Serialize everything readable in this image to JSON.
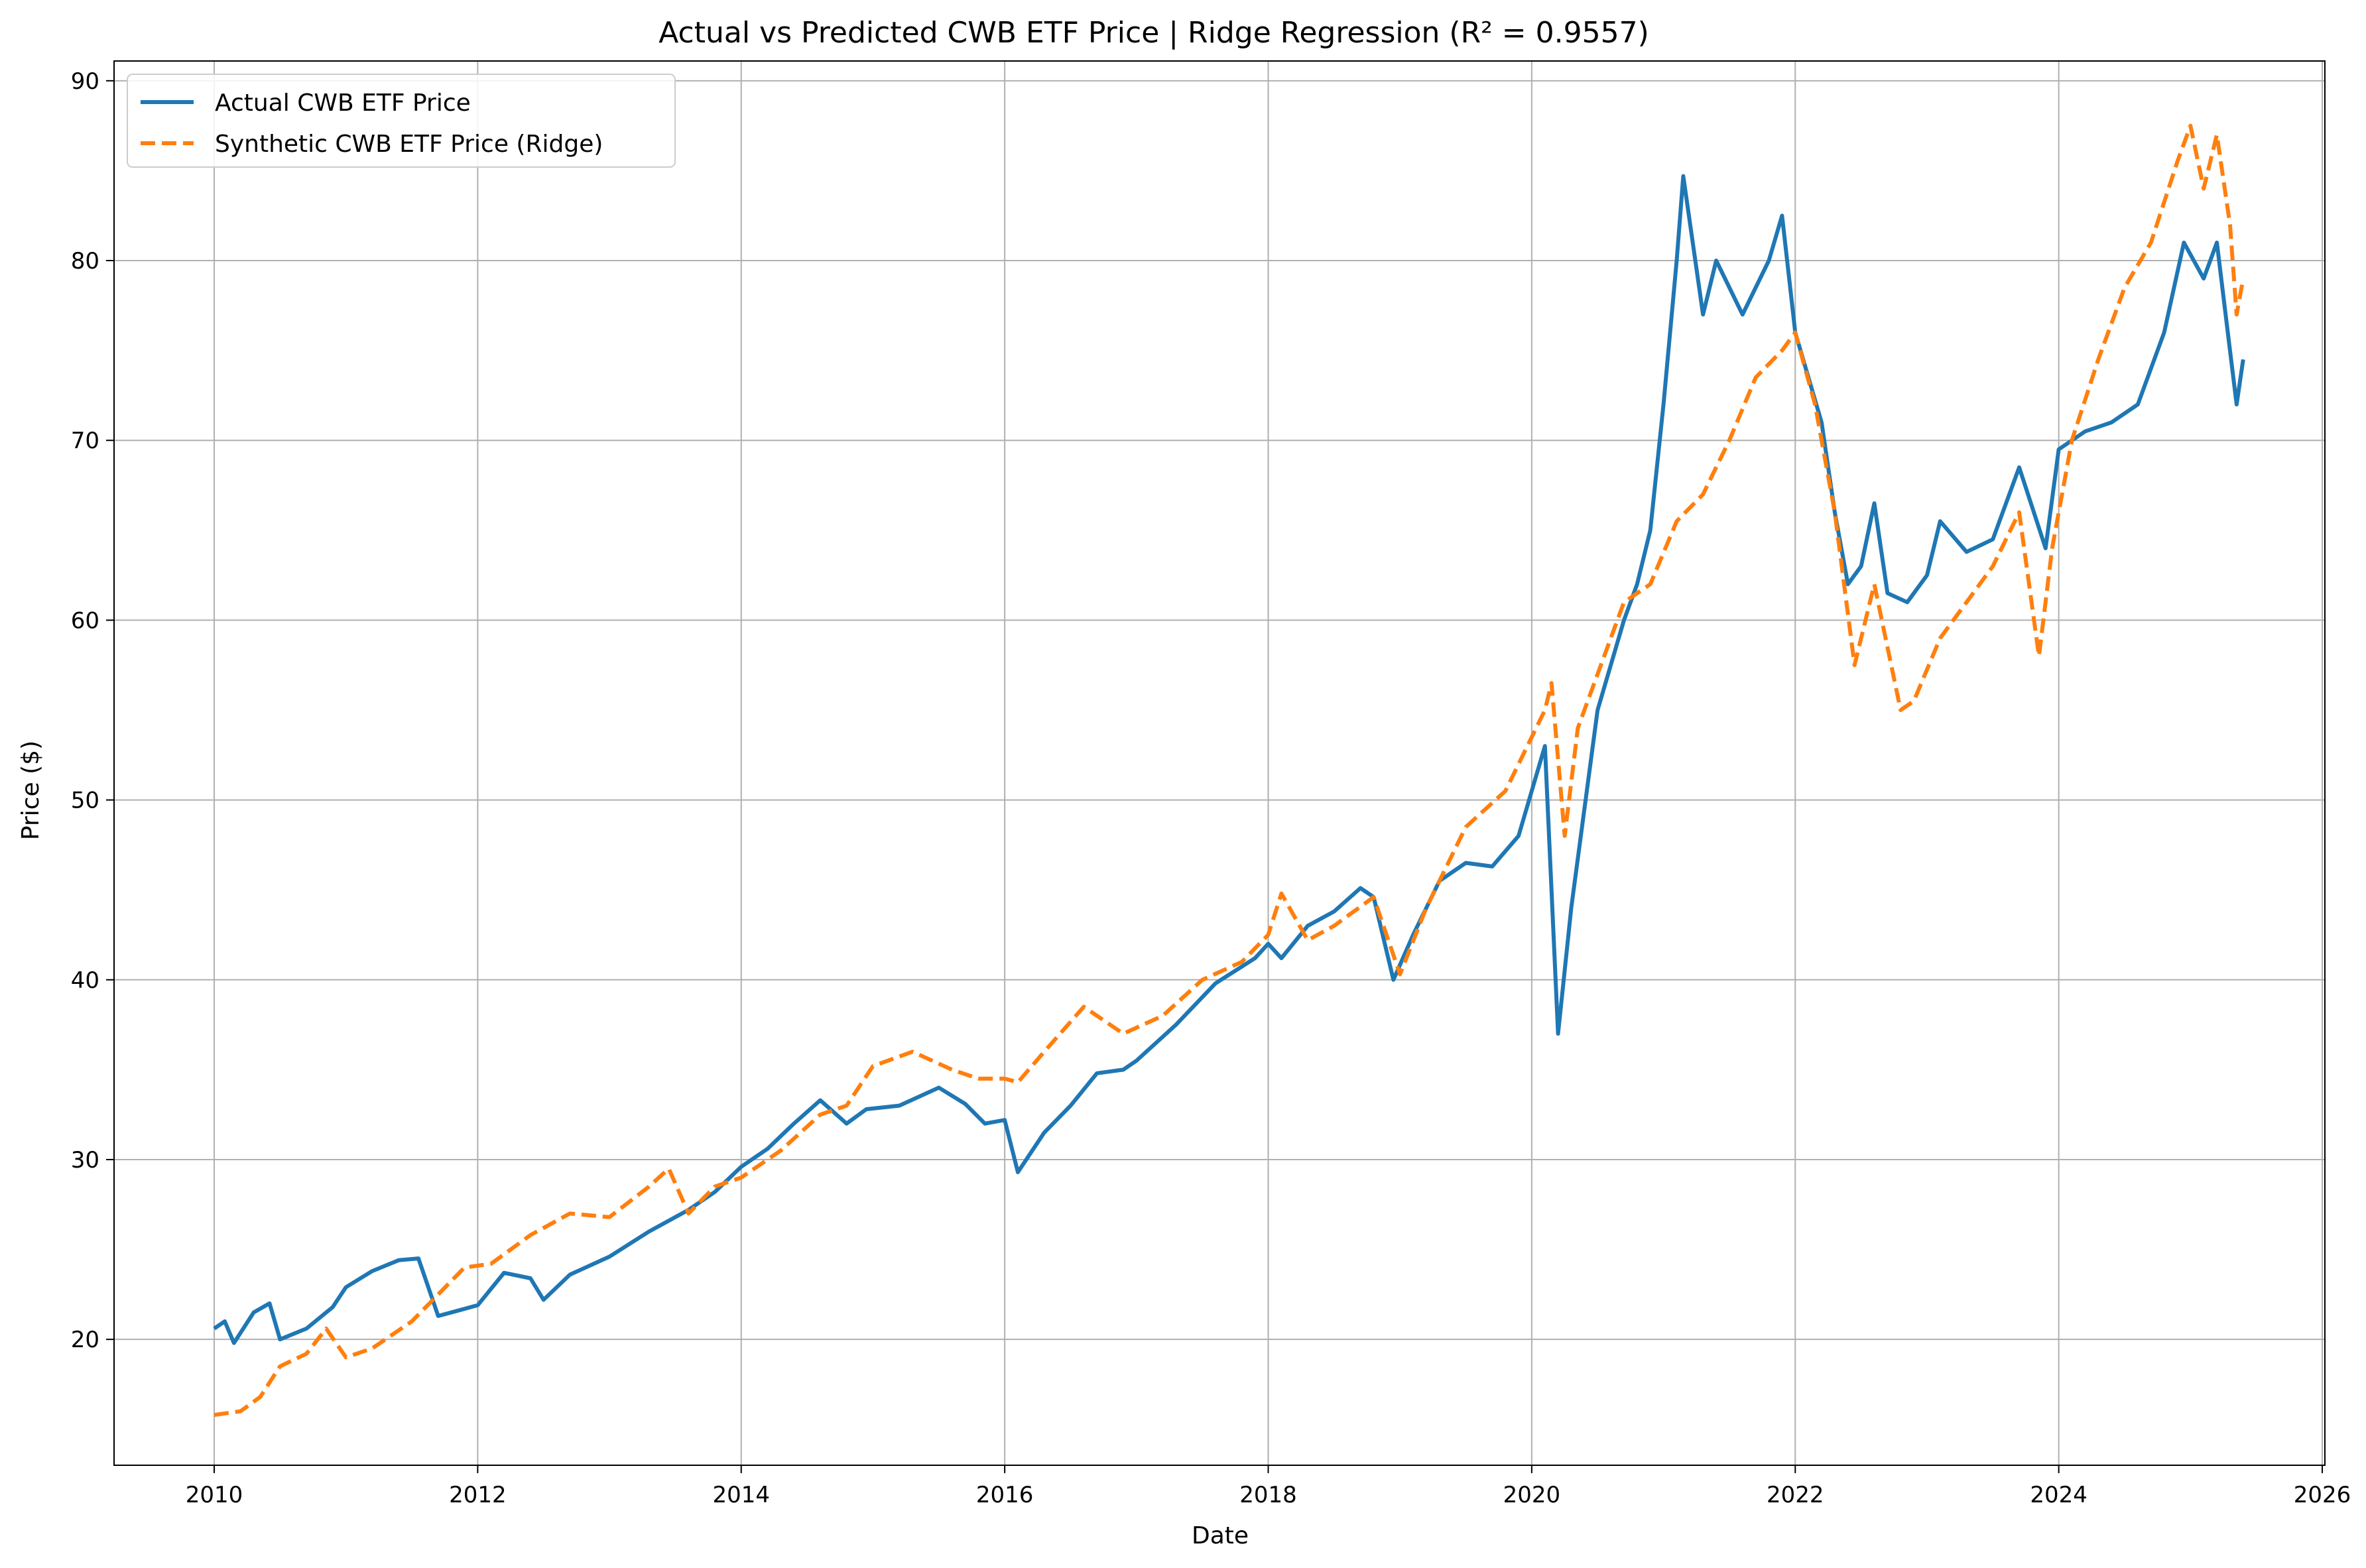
{
  "chart_data": {
    "type": "line",
    "title": "Actual vs Predicted CWB ETF Price | Ridge Regression (R² = 0.9557)",
    "xlabel": "Date",
    "ylabel": "Price ($)",
    "xlim": [
      2009.24,
      2026.02
    ],
    "ylim": [
      13.0,
      91.1
    ],
    "x_ticks": [
      2010,
      2012,
      2014,
      2016,
      2018,
      2020,
      2022,
      2024,
      2026
    ],
    "y_ticks": [
      20,
      30,
      40,
      50,
      60,
      70,
      80,
      90
    ],
    "grid": true,
    "legend_position": "top-left",
    "series": [
      {
        "name": "Actual CWB ETF Price",
        "color": "#1f77b4",
        "style": "solid",
        "points": [
          [
            2010.0,
            20.6
          ],
          [
            2010.08,
            21.0
          ],
          [
            2010.15,
            19.8
          ],
          [
            2010.3,
            21.5
          ],
          [
            2010.42,
            22.0
          ],
          [
            2010.5,
            20.0
          ],
          [
            2010.7,
            20.6
          ],
          [
            2010.9,
            21.8
          ],
          [
            2011.0,
            22.9
          ],
          [
            2011.2,
            23.8
          ],
          [
            2011.4,
            24.4
          ],
          [
            2011.55,
            24.5
          ],
          [
            2011.7,
            21.3
          ],
          [
            2011.85,
            21.6
          ],
          [
            2012.0,
            21.9
          ],
          [
            2012.2,
            23.7
          ],
          [
            2012.4,
            23.4
          ],
          [
            2012.5,
            22.2
          ],
          [
            2012.7,
            23.6
          ],
          [
            2013.0,
            24.6
          ],
          [
            2013.3,
            26.0
          ],
          [
            2013.6,
            27.2
          ],
          [
            2013.8,
            28.2
          ],
          [
            2014.0,
            29.6
          ],
          [
            2014.2,
            30.6
          ],
          [
            2014.4,
            32.0
          ],
          [
            2014.6,
            33.3
          ],
          [
            2014.8,
            32.0
          ],
          [
            2014.95,
            32.8
          ],
          [
            2015.2,
            33.0
          ],
          [
            2015.5,
            34.0
          ],
          [
            2015.7,
            33.1
          ],
          [
            2015.85,
            32.0
          ],
          [
            2016.0,
            32.2
          ],
          [
            2016.1,
            29.3
          ],
          [
            2016.3,
            31.5
          ],
          [
            2016.5,
            33.0
          ],
          [
            2016.7,
            34.8
          ],
          [
            2016.9,
            35.0
          ],
          [
            2017.0,
            35.5
          ],
          [
            2017.3,
            37.5
          ],
          [
            2017.6,
            39.8
          ],
          [
            2017.9,
            41.2
          ],
          [
            2018.0,
            42.0
          ],
          [
            2018.1,
            41.2
          ],
          [
            2018.3,
            43.0
          ],
          [
            2018.5,
            43.8
          ],
          [
            2018.7,
            45.1
          ],
          [
            2018.8,
            44.6
          ],
          [
            2018.95,
            40.0
          ],
          [
            2019.1,
            42.5
          ],
          [
            2019.3,
            45.5
          ],
          [
            2019.5,
            46.5
          ],
          [
            2019.7,
            46.3
          ],
          [
            2019.9,
            48.0
          ],
          [
            2020.1,
            53.0
          ],
          [
            2020.2,
            37.0
          ],
          [
            2020.3,
            44.0
          ],
          [
            2020.5,
            55.0
          ],
          [
            2020.7,
            60.0
          ],
          [
            2020.8,
            62.0
          ],
          [
            2020.9,
            65.0
          ],
          [
            2021.0,
            72.0
          ],
          [
            2021.1,
            80.0
          ],
          [
            2021.15,
            84.7
          ],
          [
            2021.3,
            77.0
          ],
          [
            2021.4,
            80.0
          ],
          [
            2021.6,
            77.0
          ],
          [
            2021.8,
            80.0
          ],
          [
            2021.9,
            82.5
          ],
          [
            2022.0,
            76.0
          ],
          [
            2022.2,
            71.0
          ],
          [
            2022.3,
            66.0
          ],
          [
            2022.4,
            62.0
          ],
          [
            2022.5,
            63.0
          ],
          [
            2022.6,
            66.5
          ],
          [
            2022.7,
            61.5
          ],
          [
            2022.85,
            61.0
          ],
          [
            2023.0,
            62.5
          ],
          [
            2023.1,
            65.5
          ],
          [
            2023.3,
            63.8
          ],
          [
            2023.5,
            64.5
          ],
          [
            2023.7,
            68.5
          ],
          [
            2023.9,
            64.0
          ],
          [
            2024.0,
            69.5
          ],
          [
            2024.2,
            70.5
          ],
          [
            2024.4,
            71.0
          ],
          [
            2024.6,
            72.0
          ],
          [
            2024.8,
            76.0
          ],
          [
            2024.95,
            81.0
          ],
          [
            2025.1,
            79.0
          ],
          [
            2025.2,
            81.0
          ],
          [
            2025.3,
            75.0
          ],
          [
            2025.35,
            72.0
          ],
          [
            2025.4,
            74.5
          ]
        ]
      },
      {
        "name": "Synthetic CWB ETF Price (Ridge)",
        "color": "#ff7f0e",
        "style": "dashed",
        "points": [
          [
            2010.0,
            15.8
          ],
          [
            2010.2,
            16.0
          ],
          [
            2010.35,
            16.8
          ],
          [
            2010.5,
            18.5
          ],
          [
            2010.7,
            19.2
          ],
          [
            2010.85,
            20.6
          ],
          [
            2011.0,
            19.0
          ],
          [
            2011.2,
            19.5
          ],
          [
            2011.5,
            21.0
          ],
          [
            2011.7,
            22.5
          ],
          [
            2011.9,
            24.0
          ],
          [
            2012.1,
            24.2
          ],
          [
            2012.4,
            25.8
          ],
          [
            2012.7,
            27.0
          ],
          [
            2013.0,
            26.8
          ],
          [
            2013.3,
            28.5
          ],
          [
            2013.45,
            29.5
          ],
          [
            2013.6,
            27.0
          ],
          [
            2013.8,
            28.5
          ],
          [
            2014.0,
            29.0
          ],
          [
            2014.3,
            30.5
          ],
          [
            2014.6,
            32.5
          ],
          [
            2014.8,
            33.0
          ],
          [
            2015.0,
            35.2
          ],
          [
            2015.3,
            36.0
          ],
          [
            2015.6,
            35.0
          ],
          [
            2015.8,
            34.5
          ],
          [
            2016.0,
            34.5
          ],
          [
            2016.1,
            34.3
          ],
          [
            2016.3,
            36.0
          ],
          [
            2016.6,
            38.5
          ],
          [
            2016.9,
            37.0
          ],
          [
            2017.2,
            38.0
          ],
          [
            2017.5,
            40.0
          ],
          [
            2017.8,
            41.0
          ],
          [
            2018.0,
            42.5
          ],
          [
            2018.1,
            44.8
          ],
          [
            2018.3,
            42.2
          ],
          [
            2018.5,
            43.0
          ],
          [
            2018.8,
            44.6
          ],
          [
            2019.0,
            40.3
          ],
          [
            2019.2,
            44.0
          ],
          [
            2019.5,
            48.5
          ],
          [
            2019.8,
            50.5
          ],
          [
            2020.1,
            55.0
          ],
          [
            2020.15,
            56.5
          ],
          [
            2020.25,
            48.0
          ],
          [
            2020.35,
            54.0
          ],
          [
            2020.5,
            57.0
          ],
          [
            2020.7,
            61.0
          ],
          [
            2020.9,
            62.0
          ],
          [
            2021.1,
            65.5
          ],
          [
            2021.3,
            67.0
          ],
          [
            2021.5,
            70.0
          ],
          [
            2021.7,
            73.5
          ],
          [
            2021.9,
            75.0
          ],
          [
            2022.0,
            76.0
          ],
          [
            2022.15,
            72.0
          ],
          [
            2022.3,
            66.0
          ],
          [
            2022.45,
            57.5
          ],
          [
            2022.6,
            62.0
          ],
          [
            2022.8,
            55.0
          ],
          [
            2022.9,
            55.5
          ],
          [
            2023.1,
            59.0
          ],
          [
            2023.3,
            61.0
          ],
          [
            2023.5,
            63.0
          ],
          [
            2023.7,
            66.0
          ],
          [
            2023.85,
            58.0
          ],
          [
            2023.95,
            64.0
          ],
          [
            2024.1,
            70.0
          ],
          [
            2024.3,
            74.5
          ],
          [
            2024.5,
            78.5
          ],
          [
            2024.7,
            81.0
          ],
          [
            2024.9,
            85.5
          ],
          [
            2025.0,
            87.5
          ],
          [
            2025.1,
            84.0
          ],
          [
            2025.2,
            87.0
          ],
          [
            2025.3,
            82.0
          ],
          [
            2025.35,
            77.0
          ],
          [
            2025.4,
            79.0
          ]
        ]
      }
    ]
  }
}
